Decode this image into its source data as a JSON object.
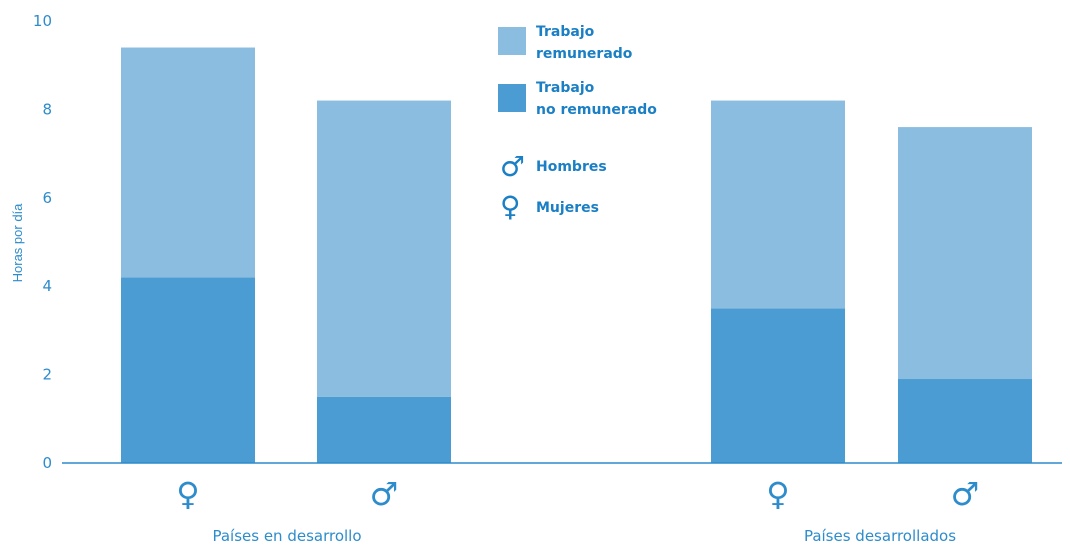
{
  "chart_data": {
    "type": "bar",
    "stacked": true,
    "ylabel": "Horas por día",
    "ylim": [
      0,
      10
    ],
    "yticks": [
      "0",
      "2",
      "4",
      "6",
      "8",
      "10"
    ],
    "groups": [
      "Países en desarrollo",
      "Países desarrollados"
    ],
    "categories": [
      "♀",
      "♂",
      "♀",
      "♂"
    ],
    "category_group": [
      0,
      0,
      1,
      1
    ],
    "series": [
      {
        "name": "Trabajo no remunerado",
        "values": [
          4.2,
          1.5,
          3.5,
          1.9
        ],
        "color": "#4b9cd3"
      },
      {
        "name": "Trabajo remunerado",
        "values": [
          5.2,
          6.7,
          4.7,
          5.7
        ],
        "color": "#8bbde0"
      }
    ],
    "totals": [
      9.4,
      8.2,
      8.2,
      7.6
    ],
    "grid": false
  },
  "legend": {
    "items": [
      {
        "line1": "Trabajo",
        "line2": "remunerado",
        "color": "#8bbde0"
      },
      {
        "line1": "Trabajo",
        "line2": "no remunerado",
        "color": "#4b9cd3"
      }
    ],
    "symbols": [
      {
        "symbol": "♂",
        "label": "Hombres"
      },
      {
        "symbol": "♀",
        "label": "Mujeres"
      }
    ]
  },
  "colors": {
    "axis": "#2d8ccb",
    "text": "#1a7fc4"
  }
}
